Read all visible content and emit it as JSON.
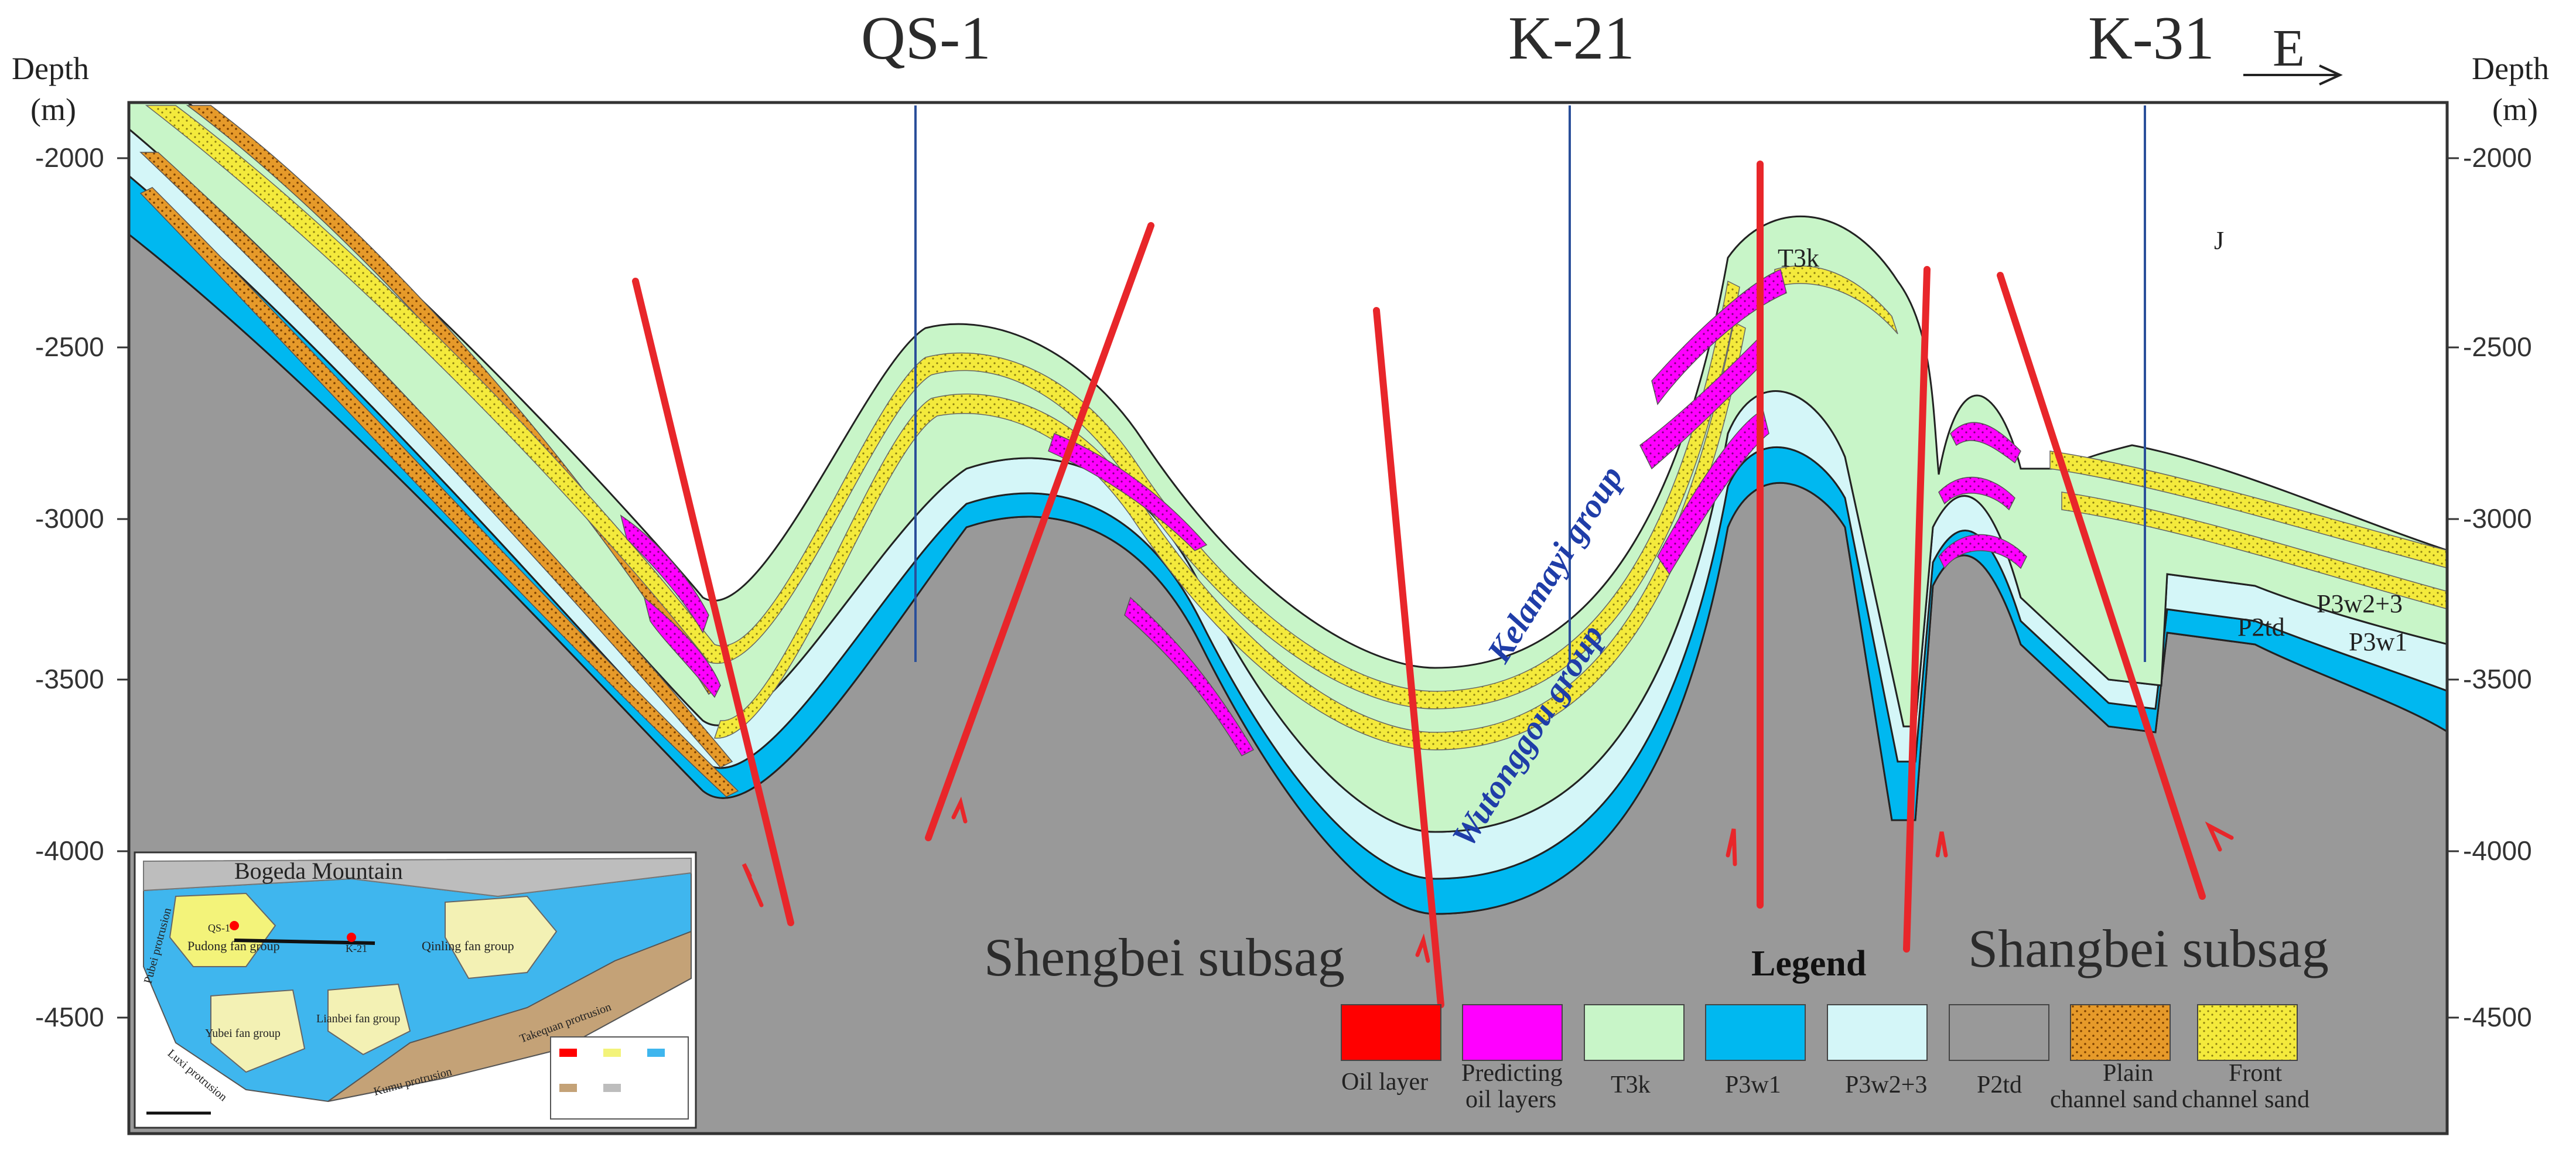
{
  "wells": [
    "QS-1",
    "K-21",
    "K-31"
  ],
  "direction": "E",
  "depth_axis": {
    "title_left": "Depth",
    "unit_left": "(m)",
    "title_right": "Depth",
    "unit_right": "(m)",
    "ticks": [
      "-2000",
      "-2500",
      "-3000",
      "-3500",
      "-4000",
      "-4500"
    ]
  },
  "subsags": [
    "Shengbei subsag",
    "Shangbei subsag"
  ],
  "groups": {
    "upper": "Kelamayi group",
    "lower": "Wutonggou group"
  },
  "layer_labels": {
    "t3k": "T3k",
    "j": "J",
    "p3w23": "P3w2+3",
    "p3w1": "P3w1",
    "p2td": "P2td"
  },
  "legend": {
    "title": "Legend",
    "items": [
      {
        "label": "Oil layer",
        "label2": "",
        "color": "#ff0000"
      },
      {
        "label": "Predicting",
        "label2": "oil layers",
        "color": "#ff00ff"
      },
      {
        "label": "T3k",
        "label2": "",
        "color": "#c8f5c8"
      },
      {
        "label": "P3w1",
        "label2": "",
        "color": "#00b8f0"
      },
      {
        "label": "P3w2+3",
        "label2": "",
        "color": "#d4f6f8"
      },
      {
        "label": "P2td",
        "label2": "",
        "color": "#999999"
      },
      {
        "label": "Plain",
        "label2": "channel sand",
        "color": "#e69a2a"
      },
      {
        "label": "Front",
        "label2": "channel sand",
        "color": "#f4ea3c"
      }
    ]
  },
  "inset_map": {
    "mountain": "Bogeda Mountain",
    "wells": [
      "QS-1",
      "K-21"
    ],
    "fan_groups": [
      "Pudong fan group",
      "Qinling fan group",
      "Lianbei fan group",
      "Yubei fan group"
    ],
    "protrusions": [
      "Pubei protrusion",
      "Luxi protrusion",
      "Kumu protrusion",
      "Takequan protrusion"
    ]
  },
  "colors": {
    "oil": "#ff0000",
    "predict": "#ff00ff",
    "t3k": "#c8f5c8",
    "p3w1": "#00b8f0",
    "p3w23": "#d4f6f8",
    "p2td": "#999999",
    "plain_sand": "#e69a2a",
    "front_sand": "#f4ea3c",
    "fault": "#e8262a",
    "well": "#2a4f9a"
  }
}
